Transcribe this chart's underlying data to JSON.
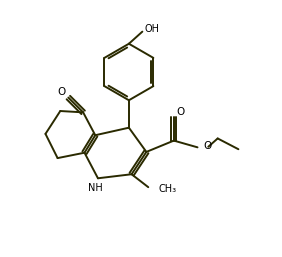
{
  "bg_color": "#ffffff",
  "bond_color": "#2a2a00",
  "text_color": "#000000",
  "figsize": [
    2.82,
    2.57
  ],
  "dpi": 100,
  "lw": 1.4,
  "xlim": [
    0,
    10
  ],
  "ylim": [
    0,
    9.5
  ]
}
